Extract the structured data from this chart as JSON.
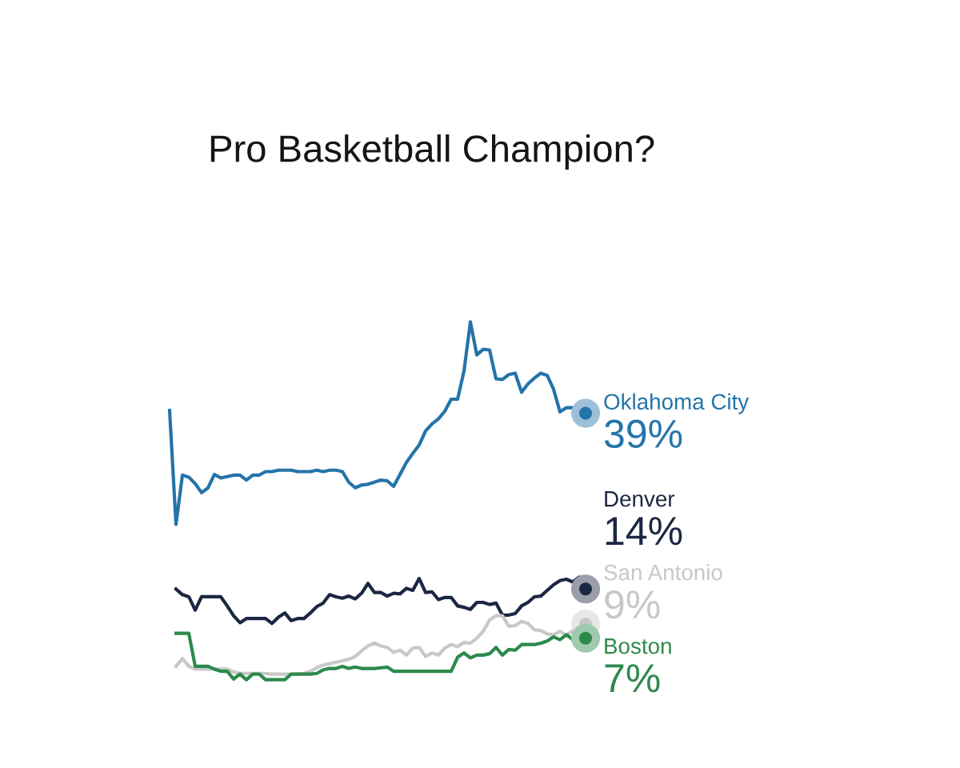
{
  "chart_data": {
    "type": "line",
    "title": "Pro Basketball Champion?",
    "categories": [
      null,
      null,
      null,
      null,
      null,
      null,
      null,
      null,
      null,
      null,
      null,
      null,
      null,
      null,
      null,
      null,
      null,
      null,
      null,
      null,
      null,
      null,
      null,
      null,
      null,
      null,
      null,
      null,
      null,
      null,
      null,
      null,
      null,
      null,
      null,
      null,
      null,
      null,
      null,
      null,
      null,
      null,
      null,
      null,
      null,
      null,
      null,
      null,
      null,
      null,
      null,
      null,
      null,
      null,
      null,
      null,
      null,
      null,
      null,
      null,
      null,
      null,
      null,
      null,
      null,
      null
    ],
    "tick_labels": false,
    "line_style": "solid",
    "series": [
      {
        "name": "Oklahoma City",
        "color": "#2574a9",
        "values": [
          39.4,
          23.2,
          30.2,
          29.9,
          29.0,
          27.7,
          28.4,
          30.3,
          29.8,
          30.0,
          30.2,
          30.2,
          29.5,
          30.2,
          30.2,
          30.7,
          30.7,
          30.9,
          30.9,
          30.9,
          30.7,
          30.7,
          30.7,
          30.9,
          30.7,
          30.9,
          30.9,
          30.7,
          29.2,
          28.4,
          28.8,
          28.9,
          29.2,
          29.5,
          29.4,
          28.6,
          30.3,
          32.0,
          33.3,
          34.5,
          36.5,
          37.5,
          38.2,
          39.3,
          41.0,
          41.0,
          45.0,
          52.0,
          47.3,
          48.1,
          48.0,
          43.9,
          43.8,
          44.5,
          44.7,
          42.0,
          43.2,
          44.0,
          44.7,
          44.4,
          42.4,
          39.2,
          39.8,
          39.8,
          39.0,
          39
        ],
        "value_labels": [
          null,
          null,
          null,
          null,
          null,
          null,
          null,
          null,
          null,
          null,
          null,
          null,
          null,
          null,
          null,
          null,
          null,
          null,
          null,
          null,
          null,
          null,
          null,
          null,
          null,
          null,
          null,
          null,
          null,
          null,
          null,
          null,
          null,
          null,
          null,
          null,
          null,
          null,
          null,
          null,
          null,
          null,
          null,
          null,
          null,
          null,
          null,
          null,
          null,
          null,
          null,
          null,
          null,
          null,
          null,
          null,
          null,
          null,
          null,
          null,
          null,
          null,
          null,
          null,
          null,
          "39%"
        ]
      },
      {
        "name": "Denver",
        "color": "#1c2742",
        "values": [
          null,
          14.0,
          13.2,
          12.9,
          11.0,
          12.9,
          12.9,
          12.9,
          12.9,
          11.6,
          10.2,
          9.2,
          9.8,
          9.8,
          9.8,
          9.8,
          9.1,
          10.0,
          10.6,
          9.5,
          9.8,
          9.8,
          10.6,
          11.5,
          12.0,
          13.2,
          12.9,
          12.7,
          13.0,
          12.6,
          13.4,
          14.8,
          13.5,
          13.5,
          13.0,
          13.4,
          13.3,
          14.1,
          13.8,
          15.5,
          13.5,
          13.6,
          12.5,
          12.8,
          12.8,
          11.6,
          11.4,
          11.1,
          12.1,
          12.1,
          11.8,
          12.0,
          10.3,
          10.3,
          10.5,
          11.6,
          12.1,
          12.9,
          13.0,
          13.8,
          14.6,
          15.2,
          15.4,
          15.0,
          15.7,
          14
        ],
        "value_labels": [
          null,
          null,
          null,
          null,
          null,
          null,
          null,
          null,
          null,
          null,
          null,
          null,
          null,
          null,
          null,
          null,
          null,
          null,
          null,
          null,
          null,
          null,
          null,
          null,
          null,
          null,
          null,
          null,
          null,
          null,
          null,
          null,
          null,
          null,
          null,
          null,
          null,
          null,
          null,
          null,
          null,
          null,
          null,
          null,
          null,
          null,
          null,
          null,
          null,
          null,
          null,
          null,
          null,
          null,
          null,
          null,
          null,
          null,
          null,
          null,
          null,
          null,
          null,
          null,
          null,
          "14%"
        ]
      },
      {
        "name": "San Antonio",
        "color": "#c8c8c8",
        "values": [
          null,
          3.0,
          4.1,
          3.0,
          2.6,
          2.6,
          2.6,
          2.6,
          2.6,
          2.6,
          2.2,
          2.0,
          2.0,
          2.0,
          2.0,
          2.0,
          1.9,
          1.9,
          1.9,
          1.9,
          1.9,
          2.0,
          2.3,
          2.8,
          3.2,
          3.4,
          3.6,
          3.8,
          4.0,
          4.4,
          5.2,
          5.9,
          6.3,
          5.9,
          5.7,
          5.0,
          5.3,
          4.6,
          5.6,
          5.7,
          4.4,
          4.9,
          4.6,
          5.6,
          6.1,
          5.8,
          6.4,
          6.3,
          7.0,
          8.0,
          9.6,
          10.2,
          10.2,
          8.7,
          8.8,
          9.4,
          9.1,
          8.2,
          8.1,
          7.6,
          7.5,
          8.0,
          7.4,
          8.1,
          8.3,
          9
        ],
        "value_labels": [
          null,
          null,
          null,
          null,
          null,
          null,
          null,
          null,
          null,
          null,
          null,
          null,
          null,
          null,
          null,
          null,
          null,
          null,
          null,
          null,
          null,
          null,
          null,
          null,
          null,
          null,
          null,
          null,
          null,
          null,
          null,
          null,
          null,
          null,
          null,
          null,
          null,
          null,
          null,
          null,
          null,
          null,
          null,
          null,
          null,
          null,
          null,
          null,
          null,
          null,
          null,
          null,
          null,
          null,
          null,
          null,
          null,
          null,
          null,
          null,
          null,
          null,
          null,
          null,
          null,
          "9%"
        ]
      },
      {
        "name": "Boston",
        "color": "#2c8a4c",
        "values": [
          null,
          7.7,
          7.7,
          7.7,
          3.0,
          3.0,
          3.0,
          2.6,
          2.3,
          2.3,
          1.2,
          1.9,
          1.1,
          1.9,
          1.9,
          1.1,
          1.1,
          1.1,
          1.1,
          1.9,
          1.9,
          1.9,
          1.9,
          2.0,
          2.5,
          2.7,
          2.7,
          3.0,
          2.7,
          2.9,
          2.7,
          2.7,
          2.7,
          2.8,
          2.9,
          2.3,
          2.3,
          2.3,
          2.3,
          2.3,
          2.3,
          2.3,
          2.3,
          2.3,
          2.3,
          4.3,
          4.9,
          4.2,
          4.6,
          4.6,
          4.8,
          5.7,
          4.6,
          5.4,
          5.3,
          6.1,
          6.1,
          6.1,
          6.3,
          6.6,
          7.2,
          6.8,
          7.5,
          6.8,
          6.4,
          7
        ],
        "value_labels": [
          null,
          null,
          null,
          null,
          null,
          null,
          null,
          null,
          null,
          null,
          null,
          null,
          null,
          null,
          null,
          null,
          null,
          null,
          null,
          null,
          null,
          null,
          null,
          null,
          null,
          null,
          null,
          null,
          null,
          null,
          null,
          null,
          null,
          null,
          null,
          null,
          null,
          null,
          null,
          null,
          null,
          null,
          null,
          null,
          null,
          null,
          null,
          null,
          null,
          null,
          null,
          null,
          null,
          null,
          null,
          null,
          null,
          null,
          null,
          null,
          null,
          null,
          null,
          null,
          null,
          "7%"
        ]
      }
    ]
  }
}
